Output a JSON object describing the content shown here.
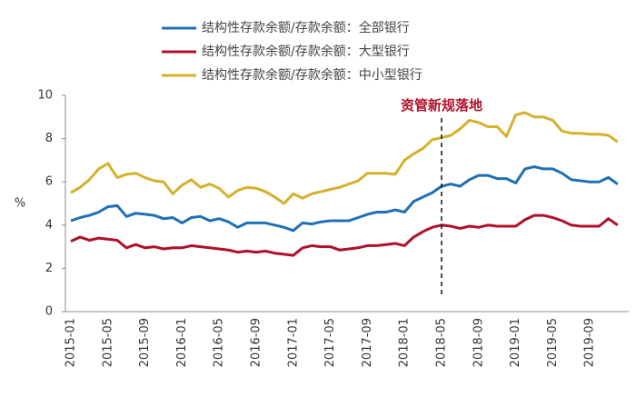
{
  "chart_data": {
    "type": "line",
    "y_label": "%",
    "categories": [
      "2015-01",
      null,
      null,
      null,
      "2015-05",
      null,
      null,
      null,
      "2015-09",
      null,
      null,
      null,
      "2016-01",
      null,
      null,
      null,
      "2016-05",
      null,
      null,
      null,
      "2016-09",
      null,
      null,
      null,
      "2017-01",
      null,
      null,
      null,
      "2017-05",
      null,
      null,
      null,
      "2017-09",
      null,
      null,
      null,
      "2018-01",
      null,
      null,
      null,
      "2018-05",
      null,
      null,
      null,
      "2018-09",
      null,
      null,
      null,
      "2019-01",
      null,
      null,
      null,
      "2019-05",
      null,
      null,
      null,
      "2019-09",
      null,
      null,
      null
    ],
    "series": [
      {
        "name": "结构性存款余额/存款余额：全部银行",
        "color": "#1f6fb5",
        "values": [
          4.2,
          4.35,
          4.45,
          4.6,
          4.85,
          4.9,
          4.4,
          4.55,
          4.5,
          4.45,
          4.3,
          4.35,
          4.1,
          4.35,
          4.4,
          4.2,
          4.3,
          4.15,
          3.9,
          4.1,
          4.1,
          4.1,
          4.0,
          3.9,
          3.75,
          4.1,
          4.05,
          4.15,
          4.2,
          4.2,
          4.2,
          4.35,
          4.5,
          4.6,
          4.6,
          4.7,
          4.6,
          5.1,
          5.3,
          5.5,
          5.8,
          5.9,
          5.8,
          6.1,
          6.3,
          6.3,
          6.15,
          6.15,
          5.95,
          6.6,
          6.7,
          6.6,
          6.6,
          6.4,
          6.1,
          6.05,
          6.0,
          6.0,
          6.2,
          5.9
        ]
      },
      {
        "name": "结构性存款余额/存款余额：大型银行",
        "color": "#b0102a",
        "values": [
          3.25,
          3.45,
          3.3,
          3.4,
          3.35,
          3.3,
          2.95,
          3.1,
          2.95,
          3.0,
          2.9,
          2.95,
          2.95,
          3.05,
          3.0,
          2.95,
          2.9,
          2.85,
          2.75,
          2.8,
          2.75,
          2.8,
          2.7,
          2.65,
          2.6,
          2.95,
          3.05,
          3.0,
          3.0,
          2.85,
          2.9,
          2.95,
          3.05,
          3.05,
          3.1,
          3.15,
          3.05,
          3.45,
          3.7,
          3.9,
          4.0,
          3.95,
          3.85,
          3.95,
          3.9,
          4.0,
          3.95,
          3.95,
          3.95,
          4.25,
          4.45,
          4.45,
          4.35,
          4.2,
          4.0,
          3.95,
          3.95,
          3.95,
          4.3,
          4.0
        ]
      },
      {
        "name": "结构性存款余额/存款余额：中小型银行",
        "color": "#d4b12c",
        "values": [
          5.5,
          5.75,
          6.1,
          6.6,
          6.85,
          6.2,
          6.35,
          6.4,
          6.2,
          6.05,
          6.0,
          5.45,
          5.85,
          6.1,
          5.75,
          5.9,
          5.7,
          5.3,
          5.6,
          5.75,
          5.7,
          5.55,
          5.3,
          5.0,
          5.45,
          5.25,
          5.45,
          5.55,
          5.65,
          5.75,
          5.9,
          6.05,
          6.4,
          6.4,
          6.4,
          6.35,
          7.0,
          7.3,
          7.55,
          7.95,
          8.05,
          8.15,
          8.45,
          8.85,
          8.75,
          8.55,
          8.55,
          8.1,
          9.1,
          9.2,
          9.0,
          9.0,
          8.85,
          8.35,
          8.25,
          8.25,
          8.2,
          8.2,
          8.15,
          7.85
        ]
      }
    ],
    "annotations": [
      {
        "text": "资管新规落地",
        "x": "2018-05"
      }
    ],
    "ylim": [
      0,
      10
    ],
    "yticks": [
      0,
      2,
      4,
      6,
      8,
      10
    ],
    "grid": false,
    "legend": "top"
  }
}
